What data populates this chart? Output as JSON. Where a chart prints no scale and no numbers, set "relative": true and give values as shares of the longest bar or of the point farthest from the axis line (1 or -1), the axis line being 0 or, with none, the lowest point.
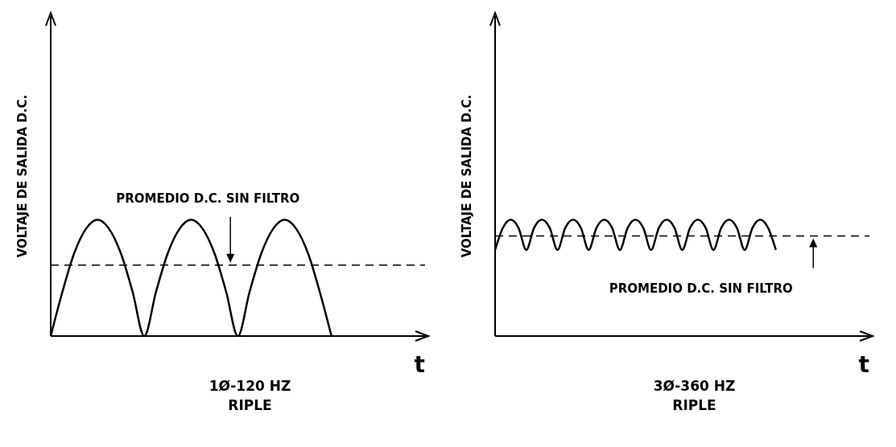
{
  "chart_data": [
    {
      "type": "line",
      "relative": true,
      "ylabel": "VOLTAJE DE SALIDA D.C.",
      "xlabel": "t",
      "categories": [
        null,
        null,
        null,
        null,
        null,
        null,
        null,
        null,
        null,
        null,
        null,
        null,
        null,
        null,
        null,
        null,
        null,
        null,
        null,
        null,
        null,
        null,
        null,
        null,
        null,
        null,
        null,
        null,
        null,
        null,
        null,
        null,
        null
      ],
      "series": [
        {
          "color": "#000000",
          "values": [
            0,
            0.38,
            0.71,
            0.92,
            1,
            0.92,
            0.71,
            0.38,
            0,
            0.38,
            0.71,
            0.92,
            1,
            0.92,
            0.71,
            0.38,
            0,
            0.38,
            0.71,
            0.92,
            1,
            0.92,
            0.71,
            0.38,
            0,
            null,
            null,
            null,
            null,
            null,
            null,
            null,
            null
          ]
        }
      ],
      "ref_lines": [
        {
          "axis": "y",
          "value": 0.61,
          "label": "PROMEDIO D.C. SIN FILTRO",
          "line_style": "dashed",
          "color": "#000000"
        }
      ],
      "annotations": [
        "1Ø-120 HZ",
        "RIPLE"
      ],
      "grid": false,
      "legend": false,
      "marker": "none",
      "line_style": "solid"
    },
    {
      "type": "line",
      "relative": true,
      "ylabel": "VOLTAJE DE SALIDA D.C.",
      "xlabel": "t",
      "categories": [
        null,
        null,
        null,
        null,
        null,
        null,
        null,
        null,
        null,
        null,
        null,
        null,
        null,
        null,
        null,
        null,
        null,
        null,
        null,
        null,
        null,
        null,
        null,
        null,
        null,
        null,
        null,
        null,
        null,
        null,
        null,
        null,
        null,
        null,
        null,
        null,
        null,
        null,
        null,
        null,
        null,
        null,
        null,
        null,
        null,
        null,
        null,
        null,
        null
      ],
      "series": [
        {
          "color": "#000000",
          "values": [
            0.74,
            0.93,
            1,
            0.93,
            0.74,
            0.93,
            1,
            0.93,
            0.74,
            0.93,
            1,
            0.93,
            0.74,
            0.93,
            1,
            0.93,
            0.74,
            0.93,
            1,
            0.93,
            0.74,
            0.93,
            1,
            0.93,
            0.74,
            0.93,
            1,
            0.93,
            0.74,
            0.93,
            1,
            0.93,
            0.74,
            0.93,
            1,
            0.93,
            0.74,
            null,
            null,
            null,
            null,
            null,
            null,
            null,
            null,
            null,
            null,
            null,
            null
          ]
        }
      ],
      "ref_lines": [
        {
          "axis": "y",
          "value": 0.86,
          "label": "PROMEDIO D.C. SIN FILTRO",
          "line_style": "dashed",
          "color": "#000000"
        }
      ],
      "annotations": [
        "3Ø-360 HZ",
        "RIPLE"
      ],
      "grid": false,
      "legend": false,
      "marker": "none",
      "line_style": "solid"
    }
  ]
}
